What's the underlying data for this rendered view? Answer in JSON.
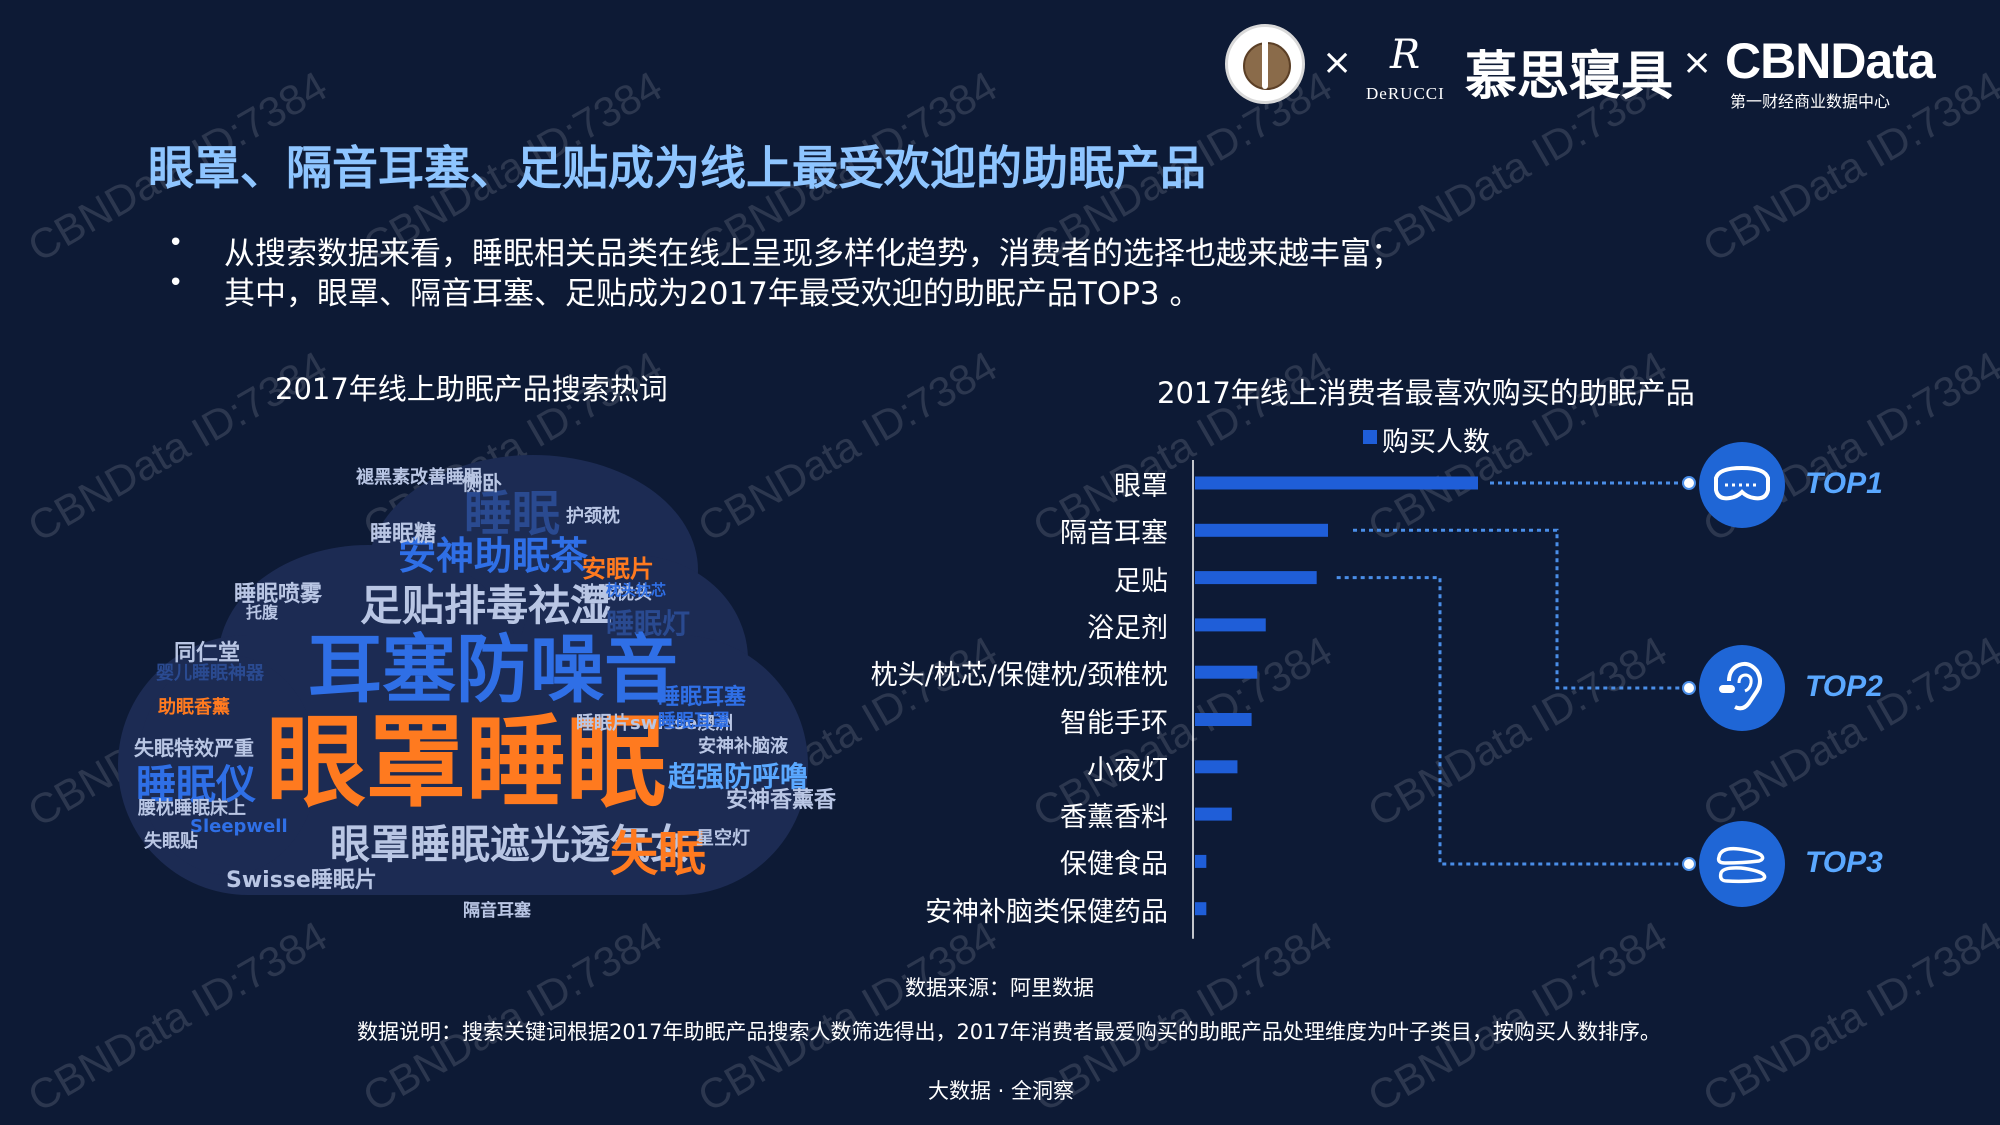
{
  "header": {
    "logo_times_1": "×",
    "logo_times_2": "×",
    "derucci_mark": "R",
    "derucci_name": "DeRUCCI",
    "mousi_name": "慕思寝具",
    "cbndata_name": "CBNData",
    "cbndata_sub": "第一财经商业数据中心"
  },
  "page_title": "眼罩、隔音耳塞、足贴成为线上最受欢迎的助眠产品",
  "bullets": [
    "从搜索数据来看，睡眠相关品类在线上呈现多样化趋势，消费者的选择也越来越丰富；",
    "其中，眼罩、隔音耳塞、足贴成为2017年最受欢迎的助眠产品TOP3 。"
  ],
  "bullet_symbol": "•",
  "word_cloud": {
    "title": "2017年线上助眠产品搜索热词",
    "words": [
      {
        "text": "眼罩睡眠",
        "color": "#ff7a1f"
      },
      {
        "text": "耳塞防噪音",
        "color": "#2f6fe6"
      },
      {
        "text": "足贴排毒祛湿",
        "color": "#b9c6e4"
      },
      {
        "text": "安神助眠茶",
        "color": "#2f6fe6"
      },
      {
        "text": "眼罩睡眠遮光透气女",
        "color": "#b9c6e4"
      },
      {
        "text": "失眠",
        "color": "#ff7a1f"
      },
      {
        "text": "睡眠",
        "color": "#2a4a90"
      },
      {
        "text": "睡眠仪",
        "color": "#2f6fe6"
      },
      {
        "text": "超强防呼噜",
        "color": "#5aa8ff"
      },
      {
        "text": "睡眠灯",
        "color": "#2a4a90"
      },
      {
        "text": "安神香薰香",
        "color": "#b9c6e4"
      },
      {
        "text": "安眠片",
        "color": "#ff7a1f"
      },
      {
        "text": "睡眠喷雾",
        "color": "#b9c6e4"
      },
      {
        "text": "睡眠耳塞",
        "color": "#2f6fe6"
      },
      {
        "text": "失眠特效严重",
        "color": "#b9c6e4"
      },
      {
        "text": "Swisse睡眠片",
        "color": "#b9c6e4"
      },
      {
        "text": "婴儿睡眠神器",
        "color": "#2a4a90"
      },
      {
        "text": "褪黑素改善睡眠",
        "color": "#b9c6e4"
      },
      {
        "text": "睡眠糖",
        "color": "#b9c6e4"
      },
      {
        "text": "侧卧",
        "color": "#b9c6e4"
      },
      {
        "text": "护颈枕",
        "color": "#b9c6e4"
      },
      {
        "text": "助眠枕头",
        "color": "#b9c6e4"
      },
      {
        "text": "安神补脑液",
        "color": "#b9c6e4"
      },
      {
        "text": "同仁堂",
        "color": "#b9c6e4"
      },
      {
        "text": "腰枕睡眠床上",
        "color": "#b9c6e4"
      },
      {
        "text": "Sleepwell",
        "color": "#2f6fe6"
      },
      {
        "text": "失眠贴",
        "color": "#b9c6e4"
      },
      {
        "text": "睡眠片swisse澳洲",
        "color": "#b9c6e4"
      },
      {
        "text": "星空灯",
        "color": "#b9c6e4"
      },
      {
        "text": "托腹",
        "color": "#b9c6e4"
      },
      {
        "text": "助眠香薰",
        "color": "#ff7a1f"
      },
      {
        "text": "睡眠耳罩",
        "color": "#2f6fe6"
      },
      {
        "text": "隔音耳塞",
        "color": "#b9c6e4"
      },
      {
        "text": "枕头枕芯",
        "color": "#2f6fe6"
      }
    ]
  },
  "chart_data": {
    "type": "bar",
    "orientation": "horizontal",
    "title": "2017年线上消费者最喜欢购买的助眠产品",
    "legend": "购买人数",
    "categories": [
      "眼罩",
      "隔音耳塞",
      "足贴",
      "浴足剂",
      "枕头/枕芯/保健枕/颈椎枕",
      "智能手环",
      "小夜灯",
      "香薰香料",
      "保健食品",
      "安神补脑类保健药品"
    ],
    "values": [
      100,
      47,
      43,
      25,
      22,
      20,
      15,
      13,
      4,
      4
    ],
    "xlim": [
      0,
      100
    ],
    "bar_color": "#1f5ed8",
    "grid": false,
    "top3": [
      {
        "label": "TOP1",
        "icon": "eye-mask-icon",
        "category_index": 0
      },
      {
        "label": "TOP2",
        "icon": "ear-icon",
        "category_index": 1
      },
      {
        "label": "TOP3",
        "icon": "feet-icon",
        "category_index": 2
      }
    ]
  },
  "footer": {
    "source": "数据来源：阿里数据",
    "note": "数据说明：搜索关键词根据2017年助眠产品搜索人数筛选得出，2017年消费者最爱购买的助眠产品处理维度为叶子类目，按购买人数排序。",
    "brand": "大数据 · 全洞察"
  },
  "watermark_text": "CBNData ID:7384",
  "colors": {
    "background": "#0d1a35",
    "title": "#8ec5ff",
    "accent_blue": "#1f5ed8",
    "accent_orange": "#ff7a1f",
    "top_label": "#5aa8ff",
    "connector": "#4a8ee8"
  }
}
